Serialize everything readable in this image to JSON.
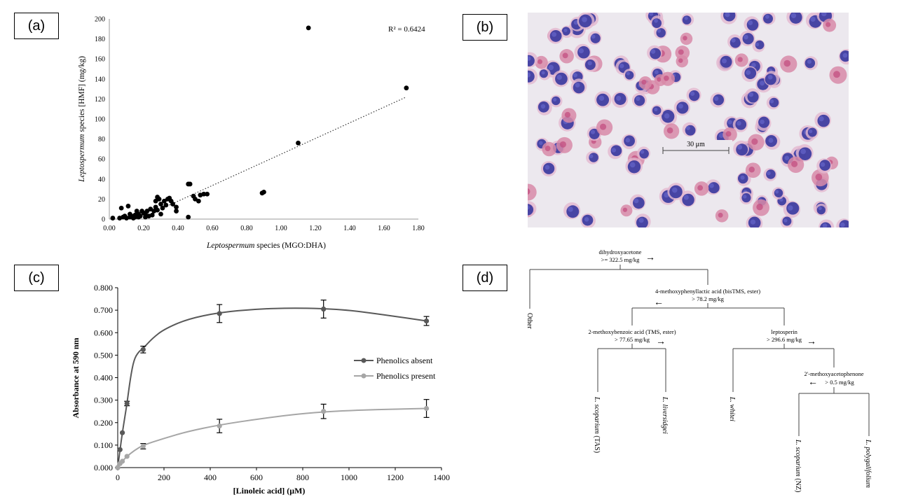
{
  "panel_labels": {
    "a": "(a)",
    "b": "(b)",
    "c": "(c)",
    "d": "(d)"
  },
  "chart_data": [
    {
      "type": "scatter",
      "panel": "(a)",
      "title": "",
      "xlabel": {
        "italic": "Leptospermum",
        "rest": " species (MGO:DHA)"
      },
      "ylabel": {
        "italic": "Leptospermum",
        "rest": " species [HMF] (mg/kg)"
      },
      "xlim": [
        0,
        1.8
      ],
      "ylim": [
        0,
        200
      ],
      "x_ticks": [
        "0.00",
        "0.20",
        "0.40",
        "0.60",
        "0.80",
        "1.00",
        "1.20",
        "1.40",
        "1.60",
        "1.80"
      ],
      "y_ticks": [
        "0",
        "20",
        "40",
        "60",
        "80",
        "100",
        "120",
        "140",
        "160",
        "180",
        "200"
      ],
      "annotation": "R² = 0.6424",
      "trendline": {
        "style": "dotted",
        "x": [
          0.35,
          1.73
        ],
        "y": [
          14,
          122
        ]
      },
      "points": [
        [
          0.02,
          1
        ],
        [
          0.06,
          1
        ],
        [
          0.07,
          11
        ],
        [
          0.08,
          2
        ],
        [
          0.09,
          3
        ],
        [
          0.1,
          1
        ],
        [
          0.11,
          13
        ],
        [
          0.12,
          2
        ],
        [
          0.12,
          5
        ],
        [
          0.13,
          3
        ],
        [
          0.14,
          1
        ],
        [
          0.15,
          4
        ],
        [
          0.15,
          2
        ],
        [
          0.16,
          8
        ],
        [
          0.17,
          2
        ],
        [
          0.17,
          5
        ],
        [
          0.18,
          3
        ],
        [
          0.19,
          8
        ],
        [
          0.2,
          6
        ],
        [
          0.21,
          2
        ],
        [
          0.21,
          5
        ],
        [
          0.22,
          8
        ],
        [
          0.23,
          3
        ],
        [
          0.24,
          10
        ],
        [
          0.25,
          4
        ],
        [
          0.26,
          8
        ],
        [
          0.27,
          12
        ],
        [
          0.27,
          18
        ],
        [
          0.28,
          22
        ],
        [
          0.28,
          9
        ],
        [
          0.29,
          20
        ],
        [
          0.3,
          5
        ],
        [
          0.3,
          15
        ],
        [
          0.31,
          11
        ],
        [
          0.32,
          18
        ],
        [
          0.33,
          14
        ],
        [
          0.34,
          20
        ],
        [
          0.35,
          21
        ],
        [
          0.36,
          18
        ],
        [
          0.37,
          15
        ],
        [
          0.39,
          12
        ],
        [
          0.39,
          8
        ],
        [
          0.46,
          2
        ],
        [
          0.46,
          35
        ],
        [
          0.47,
          35
        ],
        [
          0.49,
          23
        ],
        [
          0.5,
          20
        ],
        [
          0.52,
          18
        ],
        [
          0.53,
          24
        ],
        [
          0.55,
          25
        ],
        [
          0.57,
          25
        ],
        [
          0.89,
          26
        ],
        [
          0.9,
          27
        ],
        [
          1.1,
          76
        ],
        [
          1.16,
          191
        ],
        [
          1.73,
          131
        ]
      ]
    },
    {
      "type": "line",
      "panel": "(c)",
      "title": "",
      "xlabel": "[Linoleic acid] (μM)",
      "ylabel": "Absorbance at 590 nm",
      "xlim": [
        0,
        1400
      ],
      "ylim": [
        0,
        0.8
      ],
      "x_ticks": [
        "0",
        "200",
        "400",
        "600",
        "800",
        "1000",
        "1200",
        "1400"
      ],
      "y_ticks": [
        "0.000",
        "0.100",
        "0.200",
        "0.300",
        "0.400",
        "0.500",
        "0.600",
        "0.700",
        "0.800"
      ],
      "legend_position": "right",
      "series": [
        {
          "name": "Phenolics absent",
          "color": "#595959",
          "x": [
            0,
            10,
            20,
            40,
            110,
            440,
            890,
            1335
          ],
          "y": [
            0.0,
            0.08,
            0.155,
            0.285,
            0.525,
            0.685,
            0.705,
            0.652
          ],
          "err": [
            0.0,
            0.0,
            0.0,
            0.01,
            0.015,
            0.04,
            0.04,
            0.02
          ],
          "curve_x": [
            0,
            10,
            20,
            30,
            40,
            55,
            70,
            90,
            110,
            150,
            200,
            300,
            440,
            600,
            750,
            890,
            1000,
            1150,
            1335
          ],
          "curve_y": [
            0.0,
            0.08,
            0.155,
            0.22,
            0.285,
            0.4,
            0.48,
            0.515,
            0.53,
            0.575,
            0.615,
            0.66,
            0.69,
            0.705,
            0.71,
            0.707,
            0.7,
            0.68,
            0.652
          ]
        },
        {
          "name": "Phenolics present",
          "color": "#a6a6a6",
          "x": [
            0,
            10,
            20,
            40,
            110,
            440,
            890,
            1335
          ],
          "y": [
            0.0,
            0.018,
            0.028,
            0.05,
            0.095,
            0.185,
            0.25,
            0.263
          ],
          "err": [
            0.0,
            0.0,
            0.0,
            0.0,
            0.012,
            0.03,
            0.032,
            0.04
          ],
          "curve_x": [
            0,
            10,
            20,
            40,
            70,
            110,
            200,
            300,
            440,
            600,
            750,
            890,
            1050,
            1200,
            1335
          ],
          "curve_y": [
            0.0,
            0.015,
            0.028,
            0.05,
            0.075,
            0.1,
            0.13,
            0.16,
            0.19,
            0.215,
            0.235,
            0.248,
            0.256,
            0.26,
            0.263
          ]
        }
      ]
    }
  ],
  "micrograph": {
    "scale_bar": "30 μm"
  },
  "tree": {
    "root": {
      "feature": "dihydroxyacetone",
      "threshold": ">= 322.5 mg/kg",
      "arrow": "→"
    },
    "left_leaf": "Other",
    "node2": {
      "feature": "4-methoxyphenyllactic  acid (bisTMS, ester)",
      "threshold": "> 78.2 mg/kg",
      "arrow": "←"
    },
    "node3": {
      "feature": "2-methoxybenzoic  acid (TMS, ester)",
      "threshold": "> 77.65 mg/kg",
      "arrow": "→"
    },
    "node4": {
      "feature": "leptosperin",
      "threshold": "> 296.6 mg/kg",
      "arrow": "→"
    },
    "node5": {
      "feature": "2'-methoxyacetophenone",
      "threshold": "> 0.5 mg/kg",
      "arrow": "←"
    },
    "leaves": {
      "l_scoparium_tas": {
        "italic": "L. scoparium",
        "rest": " (TAS)"
      },
      "l_liversidgei": {
        "italic": "L. liversidgei",
        "rest": ""
      },
      "l_whitei": {
        "italic": "L. whitei",
        "rest": ""
      },
      "l_scoparium_nz": {
        "italic": "L. scoparium",
        "rest": " (NZ)"
      },
      "l_polygalifolium": {
        "italic": "L. polygalifolium",
        "rest": ""
      }
    }
  }
}
